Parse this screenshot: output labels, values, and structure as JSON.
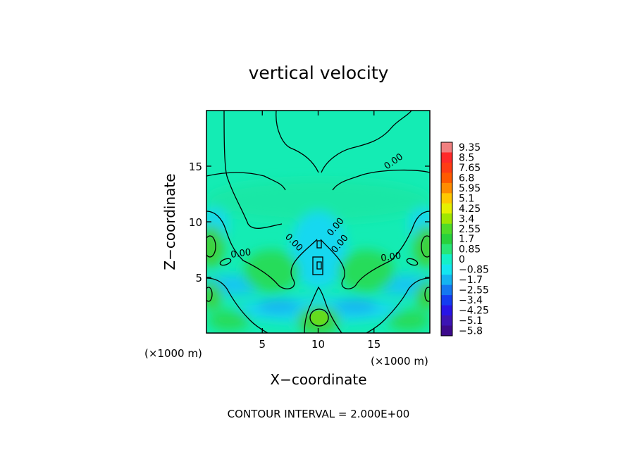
{
  "chart_data": {
    "type": "heatmap",
    "title": "vertical velocity",
    "xlabel": "X−coordinate",
    "ylabel": "Z−coordinate",
    "x_unit_left": "(×1000 m)",
    "x_unit_right": "(×1000 m)",
    "xlim": [
      0,
      20
    ],
    "ylim": [
      0,
      20
    ],
    "xticks": [
      {
        "v": 5,
        "label": "5"
      },
      {
        "v": 10,
        "label": "10"
      },
      {
        "v": 15,
        "label": "15"
      }
    ],
    "yticks": [
      {
        "v": 5,
        "label": "5"
      },
      {
        "v": 10,
        "label": "10"
      },
      {
        "v": 15,
        "label": "15"
      }
    ],
    "contour_interval_text": "CONTOUR INTERVAL = 2.000E+00",
    "contour_label": "0.00",
    "colorbar": {
      "labels": [
        "9.35",
        "8.5",
        "7.65",
        "6.8",
        "5.95",
        "5.1",
        "4.25",
        "3.4",
        "2.55",
        "1.7",
        "0.85",
        "0",
        "−0.85",
        "−1.7",
        "−2.55",
        "−3.4",
        "−4.25",
        "−5.1",
        "−5.8"
      ],
      "colors": [
        "#f08080",
        "#ff2a2a",
        "#ff3c14",
        "#ff5a00",
        "#ff8c00",
        "#ffc800",
        "#e6f000",
        "#a0e600",
        "#50dc28",
        "#28d23c",
        "#28e678",
        "#14f0c8",
        "#14e6f0",
        "#14b4f0",
        "#1478f0",
        "#143cf0",
        "#2814e6",
        "#3c14b4",
        "#3c0a8c"
      ]
    }
  }
}
